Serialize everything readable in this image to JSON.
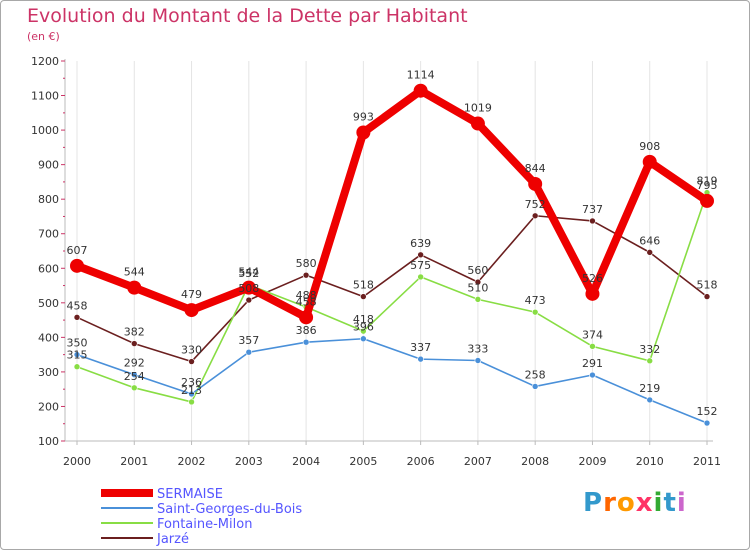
{
  "title": "Evolution du Montant de la Dette par Habitant",
  "subtitle": "(en €)",
  "logo": {
    "text": "Proxiti",
    "colors": [
      "#3399cc",
      "#ff6600",
      "#ff9900",
      "#ff3366",
      "#33aa33",
      "#3399cc",
      "#cc66cc"
    ]
  },
  "chart_data": {
    "type": "line",
    "x": [
      "2000",
      "2001",
      "2002",
      "2003",
      "2004",
      "2005",
      "2006",
      "2007",
      "2008",
      "2009",
      "2010",
      "2011"
    ],
    "ylim": [
      100,
      1200
    ],
    "yticks": [
      "100",
      "200",
      "300",
      "400",
      "500",
      "600",
      "700",
      "800",
      "900",
      "1000",
      "1100",
      "1200"
    ],
    "grid": "vertical",
    "legend_position": "bottom-left",
    "series": [
      {
        "name": "Jarzé",
        "color": "#6b1f1f",
        "values": [
          458,
          382,
          330,
          508,
          580,
          518,
          639,
          560,
          752,
          737,
          646,
          518
        ],
        "labels": [
          "458",
          "382",
          "330",
          "508",
          "580",
          "518",
          "639",
          "560",
          "752",
          "737",
          "646",
          "518"
        ]
      },
      {
        "name": "Fontaine-Milon",
        "color": "#88dd44",
        "values": [
          315,
          254,
          213,
          552,
          488,
          418,
          575,
          510,
          473,
          374,
          332,
          819
        ],
        "labels": [
          "315",
          "254",
          "213",
          "552",
          "488",
          "418",
          "575",
          "510",
          "473",
          "374",
          "332",
          "819"
        ]
      },
      {
        "name": "Saint-Georges-du-Bois",
        "color": "#4a90d9",
        "values": [
          350,
          292,
          236,
          357,
          386,
          396,
          337,
          333,
          258,
          291,
          219,
          152
        ],
        "labels": [
          "350",
          "292",
          "236",
          "357",
          "386",
          "396",
          "337",
          "333",
          "258",
          "291",
          "219",
          "152"
        ]
      },
      {
        "name": "SERMAISE",
        "color": "#ee0000",
        "values": [
          607,
          544,
          479,
          544,
          458,
          993,
          1114,
          1019,
          844,
          526,
          908,
          795
        ],
        "labels": [
          "607",
          "544",
          "479",
          "544",
          "458",
          "993",
          "1114",
          "1019",
          "844",
          "526",
          "908",
          "795"
        ]
      }
    ],
    "legend_order": [
      "SERMAISE",
      "Saint-Georges-du-Bois",
      "Fontaine-Milon",
      "Jarzé"
    ]
  }
}
